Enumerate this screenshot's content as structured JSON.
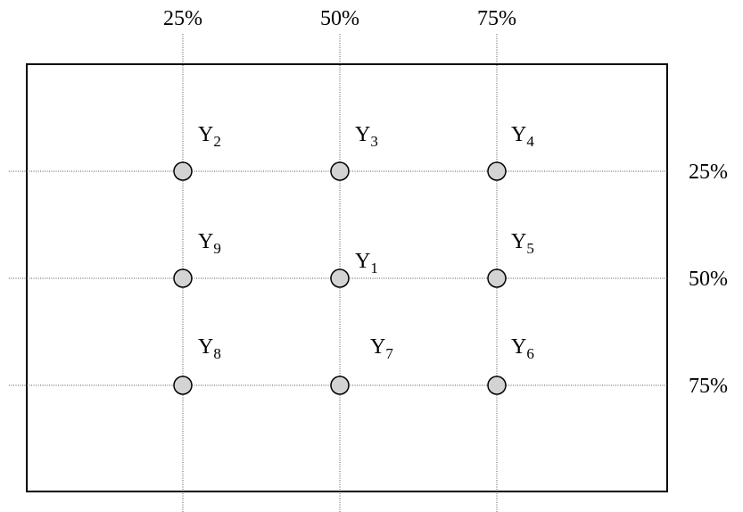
{
  "column_labels": [
    "25%",
    "50%",
    "75%"
  ],
  "row_labels": [
    "25%",
    "50%",
    "75%"
  ],
  "nodes": [
    {
      "label": "Y",
      "subscript": "2"
    },
    {
      "label": "Y",
      "subscript": "3"
    },
    {
      "label": "Y",
      "subscript": "4"
    },
    {
      "label": "Y",
      "subscript": "9"
    },
    {
      "label": "Y",
      "subscript": "1"
    },
    {
      "label": "Y",
      "subscript": "5"
    },
    {
      "label": "Y",
      "subscript": "8"
    },
    {
      "label": "Y",
      "subscript": "7"
    },
    {
      "label": "Y",
      "subscript": "6"
    }
  ]
}
